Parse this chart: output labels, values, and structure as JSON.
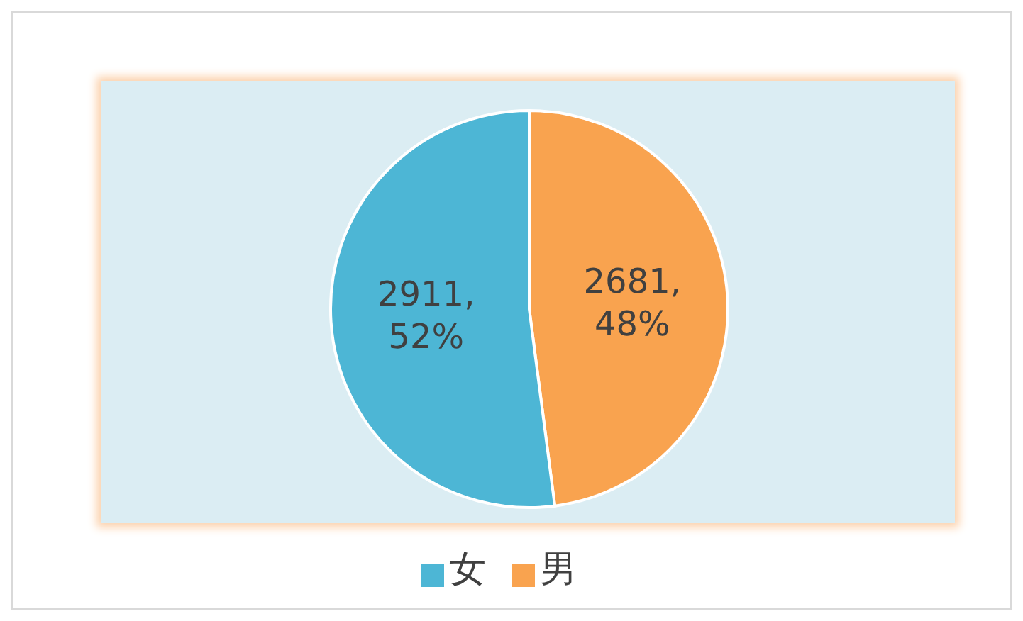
{
  "chart_data": {
    "type": "pie",
    "categories": [
      "男",
      "女"
    ],
    "values": [
      2681,
      2911
    ],
    "colors": [
      "#f9a34f",
      "#4db6d5"
    ],
    "value_labels": [
      "2681, 48%",
      "2911, 52%"
    ],
    "legend": "bottom"
  }
}
